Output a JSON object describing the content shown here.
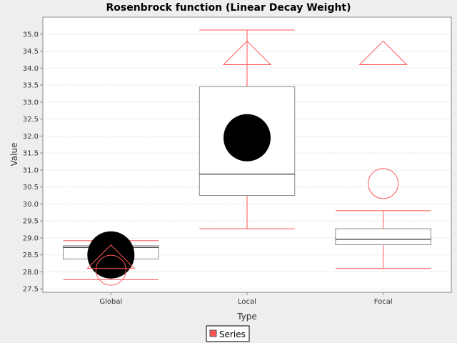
{
  "chart_data": {
    "type": "boxplot",
    "title": "Rosenbrock function (Linear Decay Weight)",
    "xlabel": "Type",
    "ylabel": "Value",
    "ylim": [
      27.4,
      35.5
    ],
    "yticks": [
      "27.5",
      "28.0",
      "28.5",
      "29.0",
      "29.5",
      "30.0",
      "30.5",
      "31.0",
      "31.5",
      "32.0",
      "32.5",
      "33.0",
      "33.5",
      "34.0",
      "34.5",
      "35.0"
    ],
    "grid": true,
    "legend": {
      "position": "bottom-center",
      "entries": [
        {
          "label": "Series",
          "color": "#ff5555"
        }
      ]
    },
    "categories": [
      "Global",
      "Local",
      "Focal"
    ],
    "series": [
      {
        "name": "Series",
        "boxes": [
          {
            "category": "Global",
            "min": 27.77,
            "q1": 28.38,
            "median": 28.72,
            "q3": 28.77,
            "max": 28.92,
            "mean": 28.5,
            "outliers": [
              28.05
            ],
            "far_outliers": [
              28.1
            ]
          },
          {
            "category": "Local",
            "min": 29.27,
            "q1": 30.25,
            "median": 30.88,
            "q3": 33.45,
            "max": 35.12,
            "mean": 31.95,
            "outliers": [],
            "far_outliers": [
              34.1
            ]
          },
          {
            "category": "Focal",
            "min": 28.1,
            "q1": 28.8,
            "median": 28.96,
            "q3": 29.27,
            "max": 29.8,
            "mean": null,
            "outliers": [
              30.6
            ],
            "far_outliers": [
              34.1
            ]
          }
        ]
      }
    ]
  },
  "colors": {
    "background": "#eeeeee",
    "plot_background": "#ffffff",
    "series": "#ff5555",
    "box_outline": "#888888",
    "median": "#333333",
    "mean": "#000000",
    "grid": "#dddddd"
  }
}
